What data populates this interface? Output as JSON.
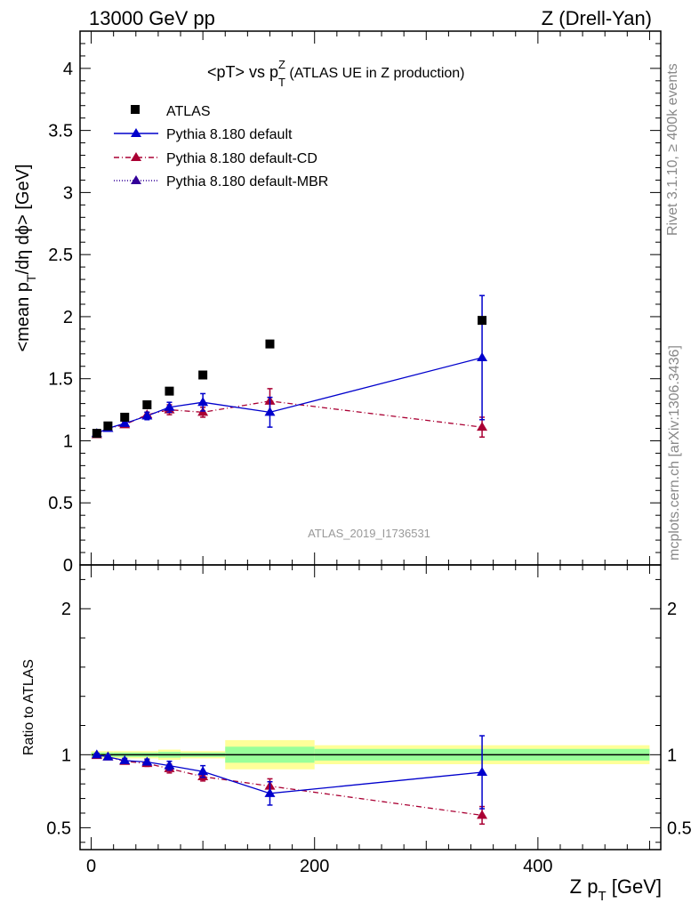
{
  "header": {
    "left": "13000 GeV pp",
    "right": "Z (Drell-Yan)"
  },
  "side_labels": {
    "rivet": "Rivet 3.1.10, ≥ 400k events",
    "mcplots": "mcplots.cern.ch [arXiv:1306.3436]"
  },
  "chart_data": {
    "type": "scatter",
    "title": "<pT> vs pTZ (ATLAS UE in Z production)",
    "title_parts": {
      "main": "<pT> vs p",
      "sub": "T",
      "sup": "Z",
      "tail": " (ATLAS UE in Z production)"
    },
    "watermark": "ATLAS_2019_I1736531",
    "xlabel": "Z p_T [GeV]",
    "xlabel_parts": {
      "main": "Z p",
      "sub": "T",
      "tail": " [GeV]"
    },
    "ylabel": "<mean p_T/dη dϕ> [GeV]",
    "ylabel_parts": {
      "main": "<mean p",
      "sub": "T",
      "tail": "/dη dϕ> [GeV]"
    },
    "ratio_ylabel": "Ratio to ATLAS",
    "xlim": [
      -10,
      510
    ],
    "ylim": [
      0,
      4.3
    ],
    "ratio_ylim": [
      0.35,
      2.3
    ],
    "x_ticks": [
      "0",
      "200",
      "400"
    ],
    "y_ticks": [
      "0",
      "0.5",
      "1",
      "1.5",
      "2",
      "2.5",
      "3",
      "3.5",
      "4"
    ],
    "ratio_ticks": [
      "0.5",
      "1",
      "2"
    ],
    "legend_position": "top-left",
    "legend": [
      {
        "label": "ATLAS",
        "style": "data-square"
      },
      {
        "label": "Pythia 8.180 default",
        "style": "solid-triangle"
      },
      {
        "label": "Pythia 8.180 default-CD",
        "style": "dashdot-triangle"
      },
      {
        "label": "Pythia 8.180 default-MBR",
        "style": "dotted-triangle"
      }
    ],
    "colors": {
      "data": "#000000",
      "default": "#0000cc",
      "default_cd": "#aa0033",
      "default_mbr": "#330099",
      "band_stat": "#99ff99",
      "band_total": "#ffff99"
    },
    "x": [
      5,
      15,
      30,
      50,
      70,
      100,
      160,
      350
    ],
    "bins": [
      [
        0,
        10
      ],
      [
        10,
        20
      ],
      [
        20,
        40
      ],
      [
        40,
        60
      ],
      [
        60,
        80
      ],
      [
        80,
        120
      ],
      [
        120,
        200
      ],
      [
        200,
        500
      ]
    ],
    "series": [
      {
        "name": "ATLAS",
        "values": [
          1.06,
          1.12,
          1.19,
          1.29,
          1.4,
          1.53,
          1.78,
          1.97
        ]
      },
      {
        "name": "Pythia 8.180 default",
        "values": [
          1.06,
          1.1,
          1.14,
          1.2,
          1.27,
          1.31,
          1.23,
          1.67
        ],
        "errors": [
          0.01,
          0.01,
          0.02,
          0.03,
          0.04,
          0.07,
          0.12,
          0.5
        ],
        "ratio": [
          1.0,
          0.985,
          0.96,
          0.95,
          0.925,
          0.885,
          0.735,
          0.88
        ],
        "ratio_errors": [
          0.01,
          0.01,
          0.015,
          0.02,
          0.03,
          0.04,
          0.08,
          0.25
        ]
      },
      {
        "name": "Pythia 8.180 default-CD",
        "values": [
          1.05,
          1.1,
          1.13,
          1.21,
          1.25,
          1.23,
          1.32,
          1.11
        ],
        "errors": [
          0.01,
          0.01,
          0.02,
          0.02,
          0.04,
          0.04,
          0.1,
          0.08
        ],
        "ratio": [
          0.995,
          0.985,
          0.955,
          0.94,
          0.905,
          0.85,
          0.785,
          0.585
        ],
        "ratio_errors": [
          0.01,
          0.01,
          0.015,
          0.02,
          0.03,
          0.03,
          0.05,
          0.06
        ]
      }
    ],
    "ratio_bands": [
      {
        "bin": [
          0,
          20
        ],
        "stat": 0.015,
        "total": 0.025
      },
      {
        "bin": [
          20,
          60
        ],
        "stat": 0.015,
        "total": 0.025
      },
      {
        "bin": [
          60,
          80
        ],
        "stat": 0.02,
        "total": 0.035
      },
      {
        "bin": [
          80,
          120
        ],
        "stat": 0.015,
        "total": 0.025
      },
      {
        "bin": [
          120,
          200
        ],
        "stat": 0.055,
        "total": 0.1
      },
      {
        "bin": [
          200,
          500
        ],
        "stat": 0.04,
        "total": 0.065
      }
    ]
  }
}
